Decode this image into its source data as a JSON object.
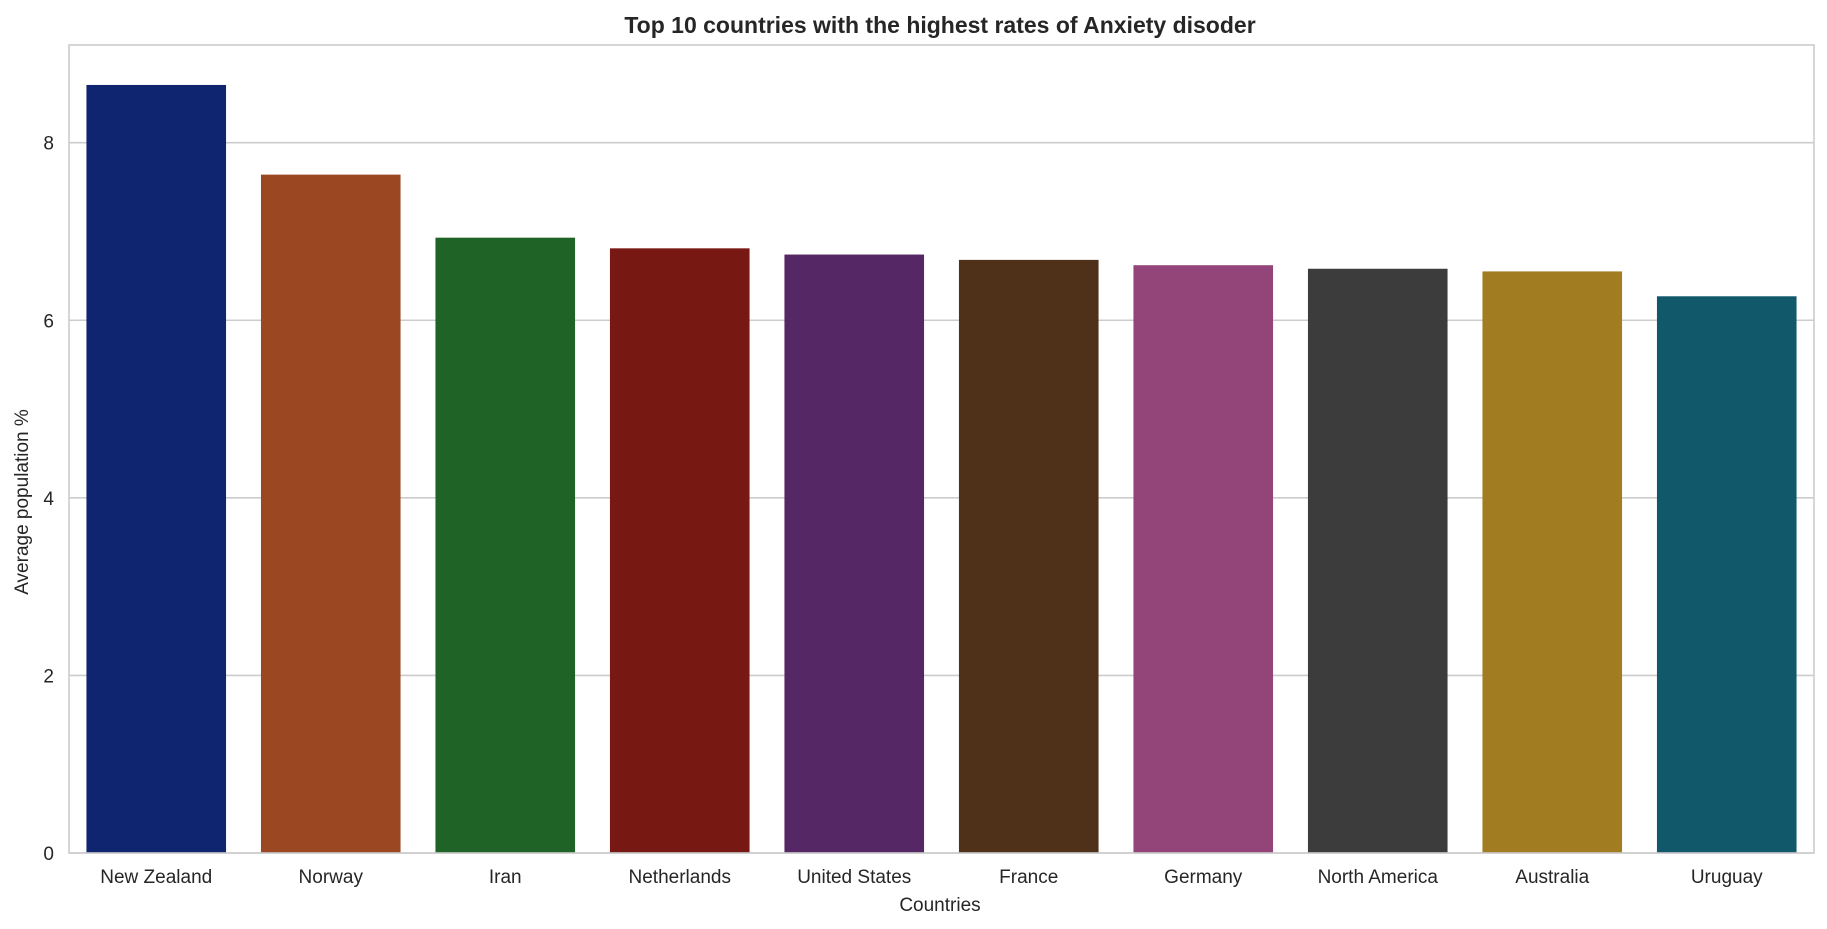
{
  "chart_data": {
    "type": "bar",
    "title": "Top 10 countries with the highest rates of Anxiety disoder",
    "xlabel": "Countries",
    "ylabel": "Average population %",
    "categories": [
      "New Zealand",
      "Norway",
      "Iran",
      "Netherlands",
      "United States",
      "France",
      "Germany",
      "North America",
      "Australia",
      "Uruguay"
    ],
    "values": [
      8.65,
      7.64,
      6.93,
      6.81,
      6.74,
      6.68,
      6.62,
      6.58,
      6.55,
      6.27
    ],
    "colors": [
      "#0f2570",
      "#9b4721",
      "#1f6426",
      "#781813",
      "#552865",
      "#4f3018",
      "#934479",
      "#3c3c3c",
      "#a17c21",
      "#11596a"
    ],
    "ylim": [
      0,
      9.1
    ],
    "yticks": [
      0,
      2,
      4,
      6,
      8
    ],
    "grid": "y-axis"
  }
}
